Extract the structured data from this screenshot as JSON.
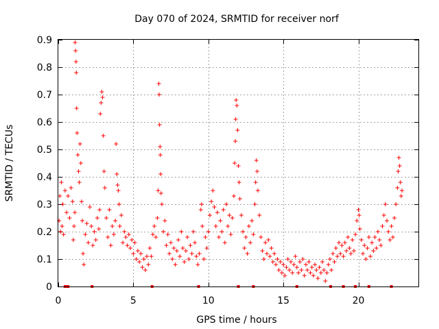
{
  "chart_data": {
    "type": "scatter",
    "title": "Day 070 of 2024, SRMTID for receiver norf",
    "xlabel": "GPS time / hours",
    "ylabel": "SRMTID / TECUs",
    "xlim": [
      0,
      24
    ],
    "ylim": [
      0,
      0.9
    ],
    "xticks": [
      0,
      5,
      10,
      15,
      20
    ],
    "xtick_labels": [
      "0",
      "5",
      "10",
      "15",
      "20"
    ],
    "yticks": [
      0,
      0.1,
      0.2,
      0.3,
      0.4,
      0.5,
      0.6,
      0.7,
      0.8,
      0.9
    ],
    "ytick_labels": [
      "0",
      "0.1",
      "0.2",
      "0.3",
      "0.4",
      "0.5",
      "0.6",
      "0.7",
      "0.8",
      "0.9"
    ],
    "grid": true,
    "marker": "+",
    "series_color": "#ff0000",
    "series": [
      {
        "name": "SRMTID",
        "points": [
          [
            0.05,
            0.24
          ],
          [
            0.1,
            0.33
          ],
          [
            0.15,
            0.2
          ],
          [
            0.2,
            0.38
          ],
          [
            0.25,
            0.22
          ],
          [
            0.3,
            0.3
          ],
          [
            0.35,
            0.19
          ],
          [
            0.45,
            0.35
          ],
          [
            0.55,
            0.27
          ],
          [
            0.65,
            0.33
          ],
          [
            0.75,
            0.25
          ],
          [
            0.85,
            0.36
          ],
          [
            0.95,
            0.31
          ],
          [
            1.0,
            0.17
          ],
          [
            1.05,
            0.22
          ],
          [
            1.1,
            0.27
          ],
          [
            1.12,
            0.89
          ],
          [
            1.15,
            0.86
          ],
          [
            1.18,
            0.82
          ],
          [
            1.2,
            0.78
          ],
          [
            1.22,
            0.65
          ],
          [
            1.25,
            0.56
          ],
          [
            1.3,
            0.48
          ],
          [
            1.35,
            0.42
          ],
          [
            1.4,
            0.38
          ],
          [
            1.45,
            0.52
          ],
          [
            1.5,
            0.45
          ],
          [
            1.55,
            0.31
          ],
          [
            1.6,
            0.24
          ],
          [
            1.65,
            0.12
          ],
          [
            1.7,
            0.08
          ],
          [
            1.8,
            0.19
          ],
          [
            1.9,
            0.23
          ],
          [
            2.0,
            0.16
          ],
          [
            2.1,
            0.29
          ],
          [
            2.2,
            0.22
          ],
          [
            2.3,
            0.15
          ],
          [
            2.4,
            0.2
          ],
          [
            2.5,
            0.17
          ],
          [
            2.6,
            0.25
          ],
          [
            2.7,
            0.21
          ],
          [
            2.75,
            0.28
          ],
          [
            2.8,
            0.63
          ],
          [
            2.85,
            0.67
          ],
          [
            2.9,
            0.71
          ],
          [
            2.95,
            0.69
          ],
          [
            3.0,
            0.55
          ],
          [
            3.05,
            0.42
          ],
          [
            3.1,
            0.36
          ],
          [
            3.2,
            0.25
          ],
          [
            3.3,
            0.18
          ],
          [
            3.4,
            0.28
          ],
          [
            3.5,
            0.15
          ],
          [
            3.6,
            0.22
          ],
          [
            3.7,
            0.19
          ],
          [
            3.8,
            0.24
          ],
          [
            3.85,
            0.52
          ],
          [
            3.9,
            0.41
          ],
          [
            3.95,
            0.37
          ],
          [
            4.0,
            0.35
          ],
          [
            4.05,
            0.3
          ],
          [
            4.1,
            0.22
          ],
          [
            4.2,
            0.26
          ],
          [
            4.3,
            0.16
          ],
          [
            4.4,
            0.2
          ],
          [
            4.5,
            0.18
          ],
          [
            4.6,
            0.15
          ],
          [
            4.7,
            0.19
          ],
          [
            4.8,
            0.14
          ],
          [
            4.9,
            0.17
          ],
          [
            5.0,
            0.12
          ],
          [
            5.1,
            0.16
          ],
          [
            5.2,
            0.1
          ],
          [
            5.3,
            0.13
          ],
          [
            5.4,
            0.09
          ],
          [
            5.5,
            0.12
          ],
          [
            5.6,
            0.07
          ],
          [
            5.7,
            0.1
          ],
          [
            5.8,
            0.06
          ],
          [
            5.9,
            0.11
          ],
          [
            6.0,
            0.08
          ],
          [
            6.1,
            0.14
          ],
          [
            6.2,
            0.11
          ],
          [
            6.3,
            0.19
          ],
          [
            6.4,
            0.22
          ],
          [
            6.5,
            0.18
          ],
          [
            6.6,
            0.25
          ],
          [
            6.65,
            0.35
          ],
          [
            6.7,
            0.74
          ],
          [
            6.72,
            0.7
          ],
          [
            6.75,
            0.59
          ],
          [
            6.78,
            0.51
          ],
          [
            6.8,
            0.48
          ],
          [
            6.82,
            0.41
          ],
          [
            6.85,
            0.34
          ],
          [
            6.9,
            0.3
          ],
          [
            7.0,
            0.2
          ],
          [
            7.1,
            0.24
          ],
          [
            7.2,
            0.15
          ],
          [
            7.3,
            0.19
          ],
          [
            7.4,
            0.12
          ],
          [
            7.5,
            0.16
          ],
          [
            7.6,
            0.1
          ],
          [
            7.7,
            0.14
          ],
          [
            7.8,
            0.08
          ],
          [
            7.9,
            0.13
          ],
          [
            8.0,
            0.17
          ],
          [
            8.1,
            0.11
          ],
          [
            8.2,
            0.2
          ],
          [
            8.3,
            0.14
          ],
          [
            8.4,
            0.09
          ],
          [
            8.5,
            0.13
          ],
          [
            8.6,
            0.18
          ],
          [
            8.7,
            0.1
          ],
          [
            8.8,
            0.15
          ],
          [
            8.9,
            0.12
          ],
          [
            9.0,
            0.2
          ],
          [
            9.1,
            0.16
          ],
          [
            9.2,
            0.11
          ],
          [
            9.3,
            0.08
          ],
          [
            9.4,
            0.12
          ],
          [
            9.5,
            0.28
          ],
          [
            9.55,
            0.3
          ],
          [
            9.6,
            0.22
          ],
          [
            9.7,
            0.1
          ],
          [
            9.8,
            0.18
          ],
          [
            9.9,
            0.14
          ],
          [
            10.0,
            0.2
          ],
          [
            10.1,
            0.26
          ],
          [
            10.2,
            0.31
          ],
          [
            10.3,
            0.35
          ],
          [
            10.4,
            0.29
          ],
          [
            10.5,
            0.22
          ],
          [
            10.6,
            0.27
          ],
          [
            10.7,
            0.18
          ],
          [
            10.8,
            0.24
          ],
          [
            10.9,
            0.2
          ],
          [
            11.0,
            0.28
          ],
          [
            11.1,
            0.16
          ],
          [
            11.2,
            0.3
          ],
          [
            11.3,
            0.22
          ],
          [
            11.4,
            0.26
          ],
          [
            11.5,
            0.19
          ],
          [
            11.6,
            0.25
          ],
          [
            11.7,
            0.33
          ],
          [
            11.75,
            0.45
          ],
          [
            11.8,
            0.53
          ],
          [
            11.82,
            0.61
          ],
          [
            11.85,
            0.68
          ],
          [
            11.9,
            0.66
          ],
          [
            11.95,
            0.57
          ],
          [
            12.0,
            0.44
          ],
          [
            12.05,
            0.38
          ],
          [
            12.1,
            0.32
          ],
          [
            12.2,
            0.26
          ],
          [
            12.3,
            0.2
          ],
          [
            12.4,
            0.14
          ],
          [
            12.5,
            0.18
          ],
          [
            12.6,
            0.12
          ],
          [
            12.7,
            0.22
          ],
          [
            12.8,
            0.16
          ],
          [
            12.9,
            0.24
          ],
          [
            13.0,
            0.19
          ],
          [
            13.1,
            0.3
          ],
          [
            13.15,
            0.38
          ],
          [
            13.2,
            0.46
          ],
          [
            13.25,
            0.42
          ],
          [
            13.3,
            0.35
          ],
          [
            13.4,
            0.26
          ],
          [
            13.5,
            0.18
          ],
          [
            13.6,
            0.13
          ],
          [
            13.7,
            0.1
          ],
          [
            13.8,
            0.16
          ],
          [
            13.9,
            0.12
          ],
          [
            14.0,
            0.17
          ],
          [
            14.1,
            0.11
          ],
          [
            14.2,
            0.14
          ],
          [
            14.3,
            0.09
          ],
          [
            14.4,
            0.12
          ],
          [
            14.5,
            0.08
          ],
          [
            14.6,
            0.1
          ],
          [
            14.7,
            0.06
          ],
          [
            14.8,
            0.09
          ],
          [
            14.9,
            0.05
          ],
          [
            15.0,
            0.08
          ],
          [
            15.1,
            0.04
          ],
          [
            15.2,
            0.07
          ],
          [
            15.3,
            0.1
          ],
          [
            15.4,
            0.06
          ],
          [
            15.5,
            0.09
          ],
          [
            15.6,
            0.05
          ],
          [
            15.7,
            0.08
          ],
          [
            15.8,
            0.11
          ],
          [
            15.9,
            0.07
          ],
          [
            16.0,
            0.05
          ],
          [
            16.1,
            0.09
          ],
          [
            16.2,
            0.06
          ],
          [
            16.3,
            0.1
          ],
          [
            16.4,
            0.04
          ],
          [
            16.5,
            0.08
          ],
          [
            16.6,
            0.06
          ],
          [
            16.7,
            0.09
          ],
          [
            16.8,
            0.05
          ],
          [
            16.9,
            0.07
          ],
          [
            17.0,
            0.04
          ],
          [
            17.1,
            0.08
          ],
          [
            17.2,
            0.06
          ],
          [
            17.3,
            0.03
          ],
          [
            17.4,
            0.07
          ],
          [
            17.5,
            0.05
          ],
          [
            17.6,
            0.09
          ],
          [
            17.7,
            0.06
          ],
          [
            17.8,
            0.02
          ],
          [
            17.9,
            0.05
          ],
          [
            18.0,
            0.08
          ],
          [
            18.1,
            0.1
          ],
          [
            18.2,
            0.06
          ],
          [
            18.3,
            0.12
          ],
          [
            18.4,
            0.09
          ],
          [
            18.5,
            0.14
          ],
          [
            18.6,
            0.11
          ],
          [
            18.7,
            0.16
          ],
          [
            18.8,
            0.12
          ],
          [
            18.9,
            0.15
          ],
          [
            19.0,
            0.11
          ],
          [
            19.1,
            0.16
          ],
          [
            19.2,
            0.13
          ],
          [
            19.3,
            0.18
          ],
          [
            19.4,
            0.14
          ],
          [
            19.5,
            0.12
          ],
          [
            19.6,
            0.17
          ],
          [
            19.7,
            0.13
          ],
          [
            19.8,
            0.19
          ],
          [
            19.9,
            0.24
          ],
          [
            20.0,
            0.28
          ],
          [
            20.05,
            0.26
          ],
          [
            20.1,
            0.21
          ],
          [
            20.2,
            0.17
          ],
          [
            20.3,
            0.12
          ],
          [
            20.4,
            0.15
          ],
          [
            20.5,
            0.1
          ],
          [
            20.6,
            0.14
          ],
          [
            20.7,
            0.18
          ],
          [
            20.8,
            0.11
          ],
          [
            20.9,
            0.16
          ],
          [
            21.0,
            0.13
          ],
          [
            21.1,
            0.18
          ],
          [
            21.2,
            0.14
          ],
          [
            21.3,
            0.2
          ],
          [
            21.4,
            0.17
          ],
          [
            21.5,
            0.15
          ],
          [
            21.6,
            0.22
          ],
          [
            21.7,
            0.26
          ],
          [
            21.8,
            0.3
          ],
          [
            21.9,
            0.24
          ],
          [
            22.0,
            0.2
          ],
          [
            22.1,
            0.17
          ],
          [
            22.2,
            0.22
          ],
          [
            22.3,
            0.18
          ],
          [
            22.4,
            0.25
          ],
          [
            22.5,
            0.3
          ],
          [
            22.6,
            0.36
          ],
          [
            22.65,
            0.42
          ],
          [
            22.7,
            0.47
          ],
          [
            22.75,
            0.44
          ],
          [
            22.8,
            0.38
          ],
          [
            22.85,
            0.33
          ],
          [
            22.9,
            0.35
          ]
        ]
      },
      {
        "name": "zero-markers",
        "points": [
          [
            0.45,
            0
          ],
          [
            0.5,
            0
          ],
          [
            0.55,
            0
          ],
          [
            0.6,
            0
          ],
          [
            0.65,
            0
          ],
          [
            2.25,
            0
          ],
          [
            6.25,
            0
          ],
          [
            9.35,
            0
          ],
          [
            12.0,
            0
          ],
          [
            13.0,
            0
          ],
          [
            15.9,
            0
          ],
          [
            18.15,
            0
          ],
          [
            19.0,
            0
          ],
          [
            19.8,
            0
          ],
          [
            20.7,
            0
          ],
          [
            22.2,
            0
          ]
        ]
      }
    ]
  }
}
